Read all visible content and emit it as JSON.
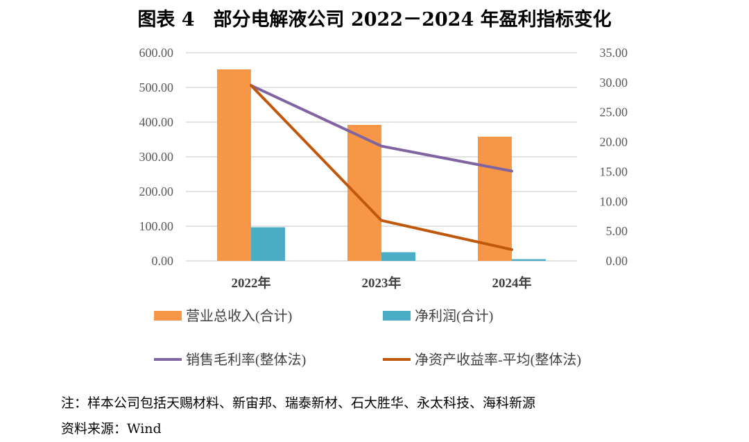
{
  "title": "图表 4　部分电解液公司 2022－2024 年盈利指标变化",
  "chart_data": {
    "type": "bar+line",
    "categories": [
      "2022年",
      "2023年",
      "2024年"
    ],
    "left_axis": {
      "min": 0,
      "max": 600,
      "ticks": [
        "0.00",
        "100.00",
        "200.00",
        "300.00",
        "400.00",
        "500.00",
        "600.00"
      ]
    },
    "right_axis": {
      "min": 0,
      "max": 35,
      "ticks": [
        "0.00",
        "5.00",
        "10.00",
        "15.00",
        "20.00",
        "25.00",
        "30.00",
        "35.00"
      ]
    },
    "grid": true,
    "legend_position": "bottom",
    "series": [
      {
        "name": "营业总收入(合计)",
        "kind": "bar",
        "axis": "left",
        "color": "#F79646",
        "values": [
          552,
          392,
          358
        ]
      },
      {
        "name": "净利润(合计)",
        "kind": "bar",
        "axis": "left",
        "color": "#4BACC6",
        "values": [
          97,
          25,
          5
        ]
      },
      {
        "name": "销售毛利率(整体法)",
        "kind": "line",
        "axis": "right",
        "color": "#8064A2",
        "values": [
          29.5,
          19.3,
          15.1
        ]
      },
      {
        "name": "净资产收益率-平均(整体法)",
        "kind": "line",
        "axis": "right",
        "color": "#C0580C",
        "values": [
          29.5,
          6.8,
          1.9
        ]
      }
    ]
  },
  "notes": {
    "sample": "注：样本公司包括天赐材料、新宙邦、瑞泰新材、石大胜华、永太科技、海科新源",
    "source": "资料来源：Wind"
  }
}
